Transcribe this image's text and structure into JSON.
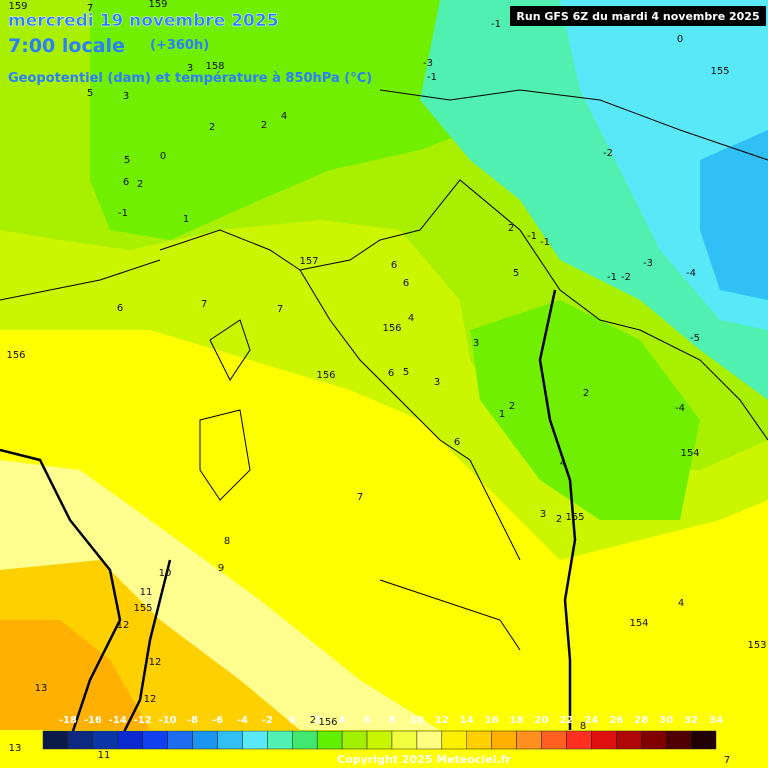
{
  "header": {
    "date": "mercredi 19 novembre 2025",
    "time": "7:00 locale",
    "lead": "(+360h)",
    "field": "Geopotentiel (dam) et température à 850hPa (°C)",
    "run": "Run GFS 6Z du mardi 4 novembre 2025"
  },
  "colorbar": {
    "labels": [
      "-18",
      "-16",
      "-14",
      "-12",
      "-10",
      "-8",
      "-6",
      "-4",
      "-2",
      "0",
      "2",
      "4",
      "6",
      "8",
      "10",
      "12",
      "14",
      "16",
      "18",
      "20",
      "22",
      "24",
      "26",
      "28",
      "30",
      "32",
      "34"
    ],
    "colors": [
      "#0a1a4a",
      "#0d2a80",
      "#0b36a8",
      "#0a2ad0",
      "#1040f0",
      "#1e6cf0",
      "#1a96f0",
      "#30c0f5",
      "#58e8f8",
      "#50f0b0",
      "#40e870",
      "#60f000",
      "#a0f000",
      "#c8f500",
      "#f0ff40",
      "#ffff80",
      "#fff000",
      "#ffd000",
      "#ffb000",
      "#ff9020",
      "#ff6020",
      "#ff3020",
      "#e01010",
      "#b00808",
      "#800000",
      "#500000",
      "#200000"
    ]
  },
  "map_labels": [
    "159",
    "7",
    "159",
    "158",
    "3",
    "5",
    "3",
    "2",
    "4",
    "2",
    "0",
    "5",
    "6",
    "2",
    "-1",
    "1",
    "-1",
    "0",
    "155",
    "-3",
    "-1",
    "-2",
    "2",
    "-1",
    "-1",
    "-3",
    "-1",
    "-2",
    "-4",
    "5",
    "157",
    "7",
    "7",
    "6",
    "156",
    "6",
    "6",
    "4",
    "156",
    "3",
    "156",
    "6",
    "5",
    "3",
    "2",
    "-5",
    "-4",
    "2",
    "1",
    "6",
    "154",
    "4",
    "7",
    "3",
    "2",
    "155",
    "8",
    "10",
    "9",
    "11",
    "155",
    "12",
    "12",
    "13",
    "12",
    "154",
    "4",
    "153",
    "11",
    "13",
    "156",
    "2",
    "8",
    "7"
  ],
  "footer": {
    "copyright": "Copyright 2025 Meteociel.fr"
  }
}
